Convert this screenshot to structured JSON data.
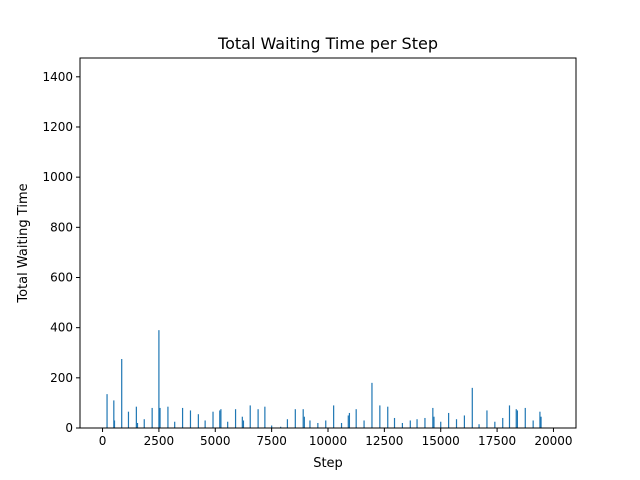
{
  "chart_data": {
    "type": "bar",
    "title": "Total Waiting Time per Step",
    "xlabel": "Step",
    "ylabel": "Total Waiting Time",
    "xlim": [
      -1000,
      21000
    ],
    "ylim": [
      0,
      1475
    ],
    "xticks": [
      0,
      2500,
      5000,
      7500,
      10000,
      12500,
      15000,
      17500,
      20000
    ],
    "yticks": [
      0,
      200,
      400,
      600,
      800,
      1000,
      1200,
      1400
    ],
    "grid": false,
    "bar_color": "#1f77b4",
    "points": [
      [
        200,
        135
      ],
      [
        500,
        110
      ],
      [
        530,
        30
      ],
      [
        850,
        275
      ],
      [
        1150,
        65
      ],
      [
        1500,
        85
      ],
      [
        1550,
        20
      ],
      [
        1850,
        35
      ],
      [
        2200,
        80
      ],
      [
        2500,
        390
      ],
      [
        2550,
        80
      ],
      [
        2900,
        85
      ],
      [
        3200,
        25
      ],
      [
        3550,
        80
      ],
      [
        3900,
        70
      ],
      [
        4250,
        55
      ],
      [
        4550,
        30
      ],
      [
        4900,
        65
      ],
      [
        5200,
        70
      ],
      [
        5250,
        75
      ],
      [
        5550,
        25
      ],
      [
        5900,
        75
      ],
      [
        6200,
        45
      ],
      [
        6250,
        30
      ],
      [
        6550,
        90
      ],
      [
        6900,
        75
      ],
      [
        7200,
        85
      ],
      [
        7500,
        10
      ],
      [
        7900,
        5
      ],
      [
        8200,
        35
      ],
      [
        8550,
        75
      ],
      [
        8900,
        75
      ],
      [
        8950,
        45
      ],
      [
        9200,
        30
      ],
      [
        9550,
        20
      ],
      [
        9900,
        30
      ],
      [
        10250,
        90
      ],
      [
        10600,
        20
      ],
      [
        10900,
        50
      ],
      [
        10950,
        60
      ],
      [
        11250,
        75
      ],
      [
        11600,
        30
      ],
      [
        11950,
        180
      ],
      [
        12300,
        90
      ],
      [
        12650,
        85
      ],
      [
        12950,
        40
      ],
      [
        13300,
        20
      ],
      [
        13650,
        30
      ],
      [
        13950,
        35
      ],
      [
        14300,
        40
      ],
      [
        14650,
        80
      ],
      [
        14700,
        45
      ],
      [
        15000,
        25
      ],
      [
        15350,
        60
      ],
      [
        15700,
        35
      ],
      [
        16050,
        50
      ],
      [
        16400,
        160
      ],
      [
        16700,
        15
      ],
      [
        17050,
        70
      ],
      [
        17400,
        25
      ],
      [
        17750,
        40
      ],
      [
        18050,
        90
      ],
      [
        18350,
        75
      ],
      [
        18400,
        70
      ],
      [
        18750,
        80
      ],
      [
        19100,
        30
      ],
      [
        19400,
        65
      ],
      [
        19450,
        45
      ]
    ]
  }
}
